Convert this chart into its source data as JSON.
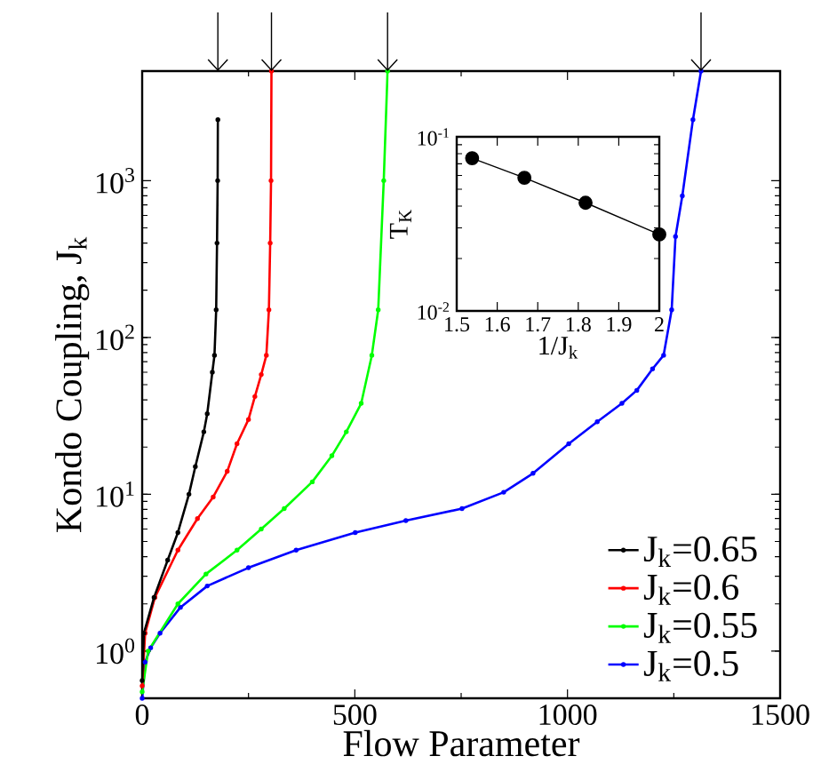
{
  "chart_data": [
    {
      "type": "line",
      "xlabel": "Flow Parameter",
      "ylabel": "Kondo Coupling, J$_{k}$",
      "log": "y",
      "xlim": [
        0,
        1500
      ],
      "ylim": [
        0.5,
        5000
      ],
      "xticks": [
        0,
        500,
        1000,
        1500
      ],
      "yticks": [
        {
          "value": 1,
          "label": "10$^{0}$"
        },
        {
          "value": 10,
          "label": "10$^{1}$"
        },
        {
          "value": 100,
          "label": "10$^{2}$"
        },
        {
          "value": 1000,
          "label": "10$^{3}$"
        }
      ],
      "legend": "bottom right",
      "marker": "circle",
      "grid": false,
      "series": [
        {
          "name": "J$_{k}$=0.65",
          "color": "#000000",
          "x": [
            0,
            4,
            28,
            60,
            84,
            110,
            125,
            145,
            153,
            165,
            170,
            174,
            176,
            177.5,
            178
          ],
          "values": [
            0.65,
            1.3,
            2.2,
            3.8,
            5.7,
            10,
            15,
            25,
            32.6,
            60,
            77,
            150,
            400,
            1000,
            2450
          ]
        },
        {
          "name": "J$_{k}$=0.6",
          "color": "#ff0000",
          "x": [
            0,
            7,
            30,
            84,
            130,
            167,
            200,
            223,
            250,
            265,
            280,
            292,
            298,
            301,
            303,
            304
          ],
          "values": [
            0.6,
            1.3,
            2.2,
            4.4,
            7,
            9.6,
            14,
            21,
            30,
            42,
            58,
            77,
            150,
            400,
            1000,
            5000
          ]
        },
        {
          "name": "J$_{k}$=0.55",
          "color": "#00ff00",
          "x": [
            0,
            14,
            84,
            150,
            223,
            280,
            334,
            400,
            446,
            480,
            515,
            540,
            555,
            568,
            577
          ],
          "values": [
            0.55,
            1.0,
            2.0,
            3.1,
            4.4,
            6.0,
            8.1,
            12,
            17.6,
            25,
            38,
            77,
            150,
            1000,
            5000
          ]
        },
        {
          "name": "J$_{k}$=0.5",
          "color": "#0000ff",
          "x": [
            0,
            7,
            20,
            42,
            90,
            153,
            250,
            362,
            501,
            620,
            752,
            850,
            919,
            1003,
            1070,
            1128,
            1163,
            1200,
            1226,
            1245,
            1254,
            1270,
            1295,
            1314
          ],
          "values": [
            0.5,
            0.85,
            1.05,
            1.3,
            1.9,
            2.6,
            3.4,
            4.4,
            5.7,
            6.8,
            8.1,
            10.3,
            13.6,
            21,
            29,
            38,
            46,
            63,
            77,
            150,
            440,
            800,
            2450,
            5000
          ]
        }
      ]
    },
    {
      "type": "line",
      "xlabel": "1/J$_{k}$",
      "ylabel": "T$_{K}$",
      "log": "y",
      "xlim": [
        1.5,
        2
      ],
      "ylim": [
        0.01,
        0.1
      ],
      "xticks": [
        1.5,
        1.6,
        1.7,
        1.8,
        1.9,
        2
      ],
      "yticks": [
        {
          "value": 0.01,
          "label": "10$^{-2}$"
        },
        {
          "value": 0.1,
          "label": "10$^{-1}$"
        }
      ],
      "marker": "circle",
      "grid": false,
      "series": [
        {
          "color": "#000000",
          "x": [
            1.538,
            1.667,
            1.818,
            2
          ],
          "values": [
            0.0754,
            0.0582,
            0.0418,
            0.0275
          ]
        }
      ]
    }
  ]
}
